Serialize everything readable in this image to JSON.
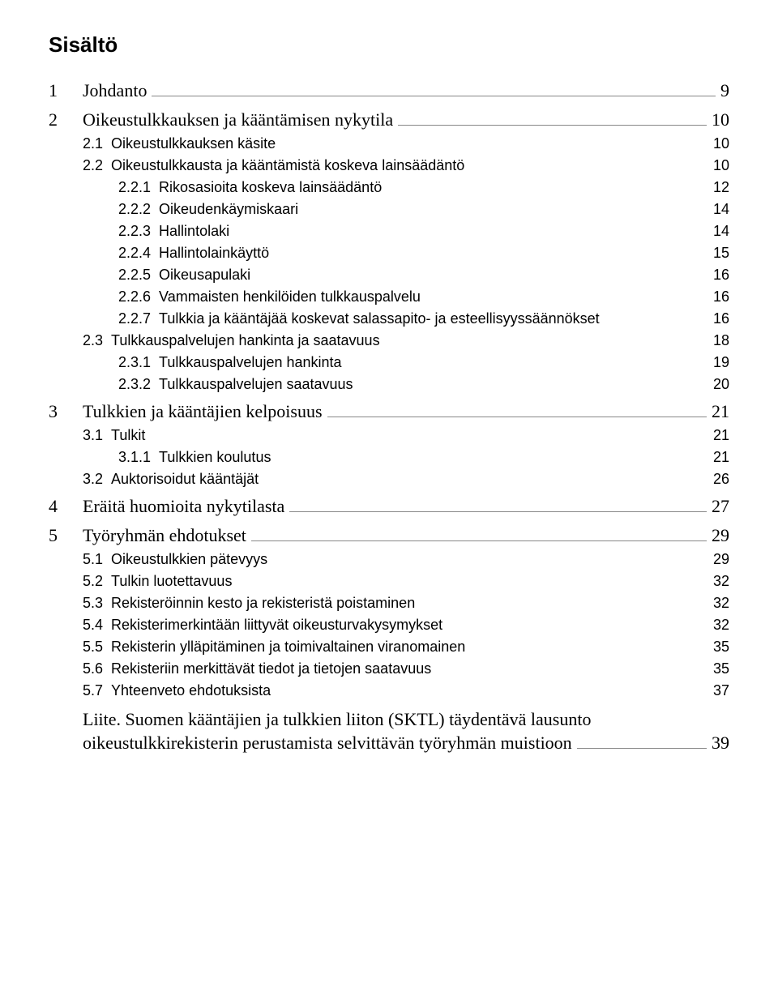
{
  "title": "Sisältö",
  "chapters": [
    {
      "num": "1",
      "title": "Johdanto",
      "page": "9",
      "subs": []
    },
    {
      "num": "2",
      "title": "Oikeustulkkauksen ja kääntämisen nykytila",
      "page": "10",
      "subs": [
        {
          "num": "2.1",
          "title": "Oikeustulkkauksen käsite",
          "page": "10",
          "level": 1
        },
        {
          "num": "2.2",
          "title": "Oikeustulkkausta ja kääntämistä koskeva lainsäädäntö",
          "page": "10",
          "level": 1
        },
        {
          "num": "2.2.1",
          "title": "Rikosasioita koskeva lainsäädäntö",
          "page": "12",
          "level": 2
        },
        {
          "num": "2.2.2",
          "title": "Oikeudenkäymiskaari",
          "page": "14",
          "level": 2
        },
        {
          "num": "2.2.3",
          "title": "Hallintolaki",
          "page": "14",
          "level": 2
        },
        {
          "num": "2.2.4",
          "title": "Hallintolainkäyttö",
          "page": "15",
          "level": 2
        },
        {
          "num": "2.2.5",
          "title": "Oikeusapulaki",
          "page": "16",
          "level": 2
        },
        {
          "num": "2.2.6",
          "title": "Vammaisten henkilöiden tulkkauspalvelu",
          "page": "16",
          "level": 2
        },
        {
          "num": "2.2.7",
          "title": "Tulkkia ja kääntäjää koskevat salassapito- ja esteellisyyssäännökset",
          "page": "16",
          "level": 2
        },
        {
          "num": "2.3",
          "title": "Tulkkauspalvelujen hankinta ja saatavuus",
          "page": "18",
          "level": 1
        },
        {
          "num": "2.3.1",
          "title": "Tulkkauspalvelujen hankinta",
          "page": "19",
          "level": 2
        },
        {
          "num": "2.3.2",
          "title": "Tulkkauspalvelujen saatavuus",
          "page": "20",
          "level": 2
        }
      ]
    },
    {
      "num": "3",
      "title": "Tulkkien ja kääntäjien kelpoisuus",
      "page": "21",
      "subs": [
        {
          "num": "3.1",
          "title": "Tulkit",
          "page": "21",
          "level": 1
        },
        {
          "num": "3.1.1",
          "title": "Tulkkien koulutus",
          "page": "21",
          "level": 2
        },
        {
          "num": "3.2",
          "title": "Auktorisoidut kääntäjät",
          "page": "26",
          "level": 1
        }
      ]
    },
    {
      "num": "4",
      "title": "Eräitä huomioita nykytilasta",
      "page": "27",
      "subs": []
    },
    {
      "num": "5",
      "title": "Työryhmän ehdotukset",
      "page": "29",
      "subs": [
        {
          "num": "5.1",
          "title": "Oikeustulkkien pätevyys",
          "page": "29",
          "level": 1
        },
        {
          "num": "5.2",
          "title": "Tulkin luotettavuus",
          "page": "32",
          "level": 1
        },
        {
          "num": "5.3",
          "title": "Rekisteröinnin kesto ja rekisteristä poistaminen",
          "page": "32",
          "level": 1
        },
        {
          "num": "5.4",
          "title": "Rekisterimerkintään liittyvät oikeusturvakysymykset",
          "page": "32",
          "level": 1
        },
        {
          "num": "5.5",
          "title": "Rekisterin ylläpitäminen ja toimivaltainen viranomainen",
          "page": "35",
          "level": 1
        },
        {
          "num": "5.6",
          "title": "Rekisteriin merkittävät tiedot ja tietojen saatavuus",
          "page": "35",
          "level": 1
        },
        {
          "num": "5.7",
          "title": "Yhteenveto ehdotuksista",
          "page": "37",
          "level": 1
        }
      ]
    }
  ],
  "appendix": {
    "line1": "Liite. Suomen kääntäjien ja tulkkien liiton (SKTL) täydentävä lausunto",
    "line2": "oikeustulkkirekisterin perustamista selvittävän työryhmän muistioon",
    "page": "39"
  }
}
